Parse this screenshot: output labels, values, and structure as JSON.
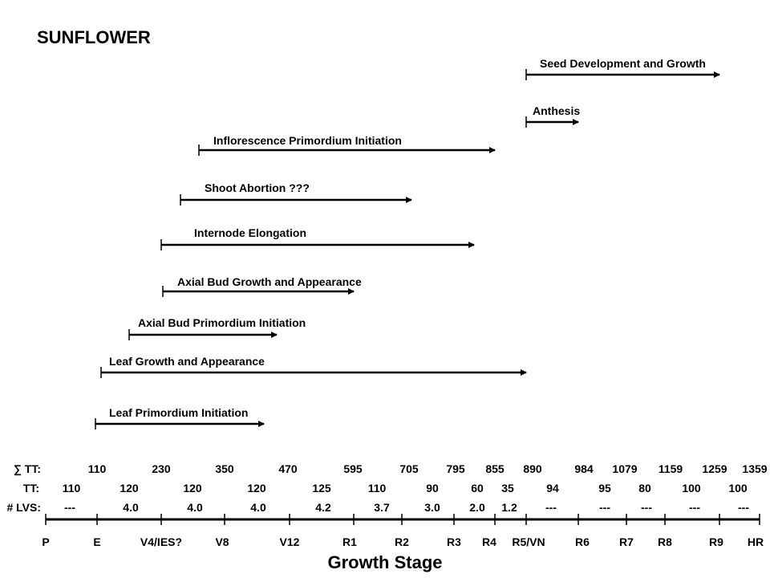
{
  "title": "SUNFLOWER",
  "axis_title": "Growth Stage",
  "processes": [
    {
      "label": "Seed Development and Growth",
      "start": "R5/VN",
      "end": "R9"
    },
    {
      "label": "Anthesis",
      "start": "R5/VN",
      "end": "R6"
    },
    {
      "label": "Inflorescence Primordium Initiation",
      "start": "V4/IES?",
      "end": "R4"
    },
    {
      "label": "Shoot Abortion ???",
      "start": "V4/IES?",
      "end": "R2"
    },
    {
      "label": "Internode Elongation",
      "start": "V4/IES?",
      "end": "R4"
    },
    {
      "label": "Axial Bud Growth and Appearance",
      "start": "V4/IES?",
      "end": "R1"
    },
    {
      "label": "Axial Bud Primordium Initiation",
      "start": "E",
      "end": "V12"
    },
    {
      "label": "Leaf Growth and Appearance",
      "start": "E",
      "end": "R5/VN"
    },
    {
      "label": "Leaf Primordium Initiation",
      "start": "E",
      "end": "V12"
    }
  ],
  "rows": {
    "sum_tt": {
      "label": "∑ TT:",
      "values": [
        "110",
        "230",
        "350",
        "470",
        "595",
        "705",
        "795",
        "855",
        "890",
        "984",
        "1079",
        "1159",
        "1259",
        "1359"
      ]
    },
    "tt": {
      "label": "TT:",
      "values": [
        "110",
        "120",
        "120",
        "120",
        "125",
        "110",
        "90",
        "60",
        "35",
        "94",
        "95",
        "80",
        "100",
        "100"
      ]
    },
    "lvs": {
      "label": "# LVS:",
      "values": [
        "---",
        "4.0",
        "4.0",
        "4.0",
        "4.2",
        "3.7",
        "3.0",
        "2.0",
        "1.2",
        "---",
        "---",
        "---",
        "---",
        "---"
      ]
    }
  },
  "stages": [
    "P",
    "E",
    "V4/IES?",
    "V8",
    "V12",
    "R1",
    "R2",
    "R3",
    "R4",
    "R5/VN",
    "R6",
    "R7",
    "R8",
    "R9",
    "HR"
  ]
}
